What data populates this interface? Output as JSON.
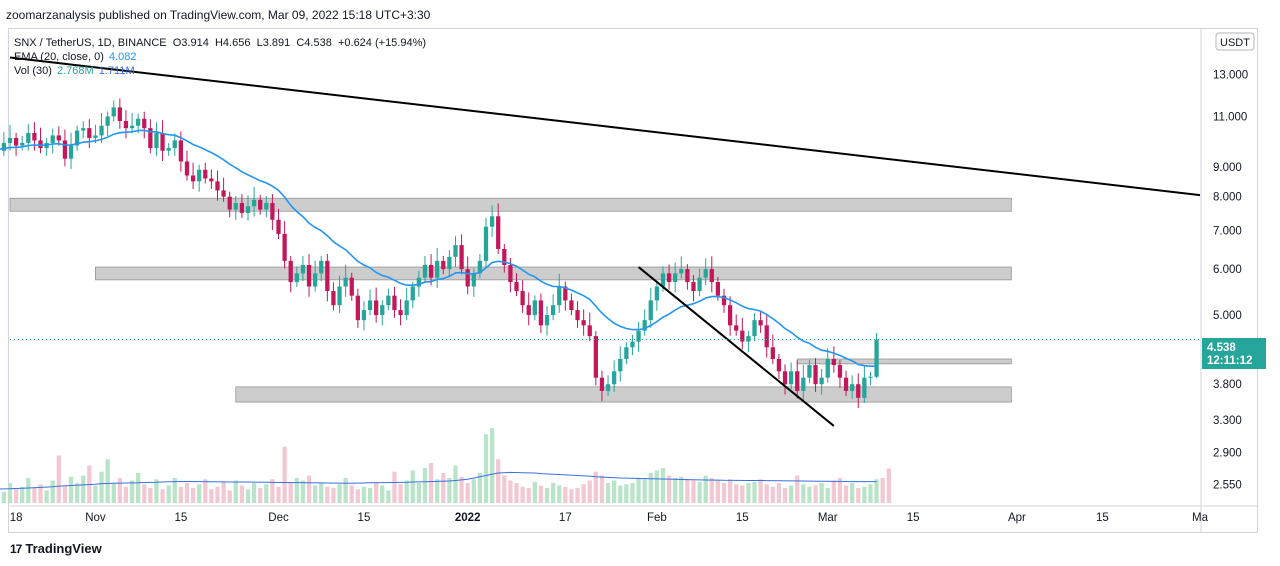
{
  "header": {
    "published": "zoomarzanalysis published on TradingView.com, Mar 09, 2022 15:18 UTC+3:30"
  },
  "legend": {
    "symbol": "SNX / TetherUS, 1D, BINANCE",
    "open": "O3.914",
    "high": "H4.656",
    "low": "L3.891",
    "close": "C4.538",
    "change": "+0.624 (+15.94%)",
    "ema_label": "EMA (20, close, 0)",
    "ema_value": "4.082",
    "vol_label": "Vol (30)",
    "vol_value": "2.768M",
    "vol_ma_value": "1.711M"
  },
  "currency_badge": "USDT",
  "price_badge": {
    "price": "4.538",
    "countdown": "12:11:12"
  },
  "brand": {
    "logo_text": "17",
    "name": "TradingView"
  },
  "colors": {
    "up": "#26a69a",
    "down": "#c2185b",
    "ema": "#2196f3",
    "vol_up": "#b9e4c9",
    "vol_down": "#f2c9d2",
    "vol_ma": "#3b6fe0",
    "zone": "#c8c8c8",
    "trendline": "#000000",
    "price_line": "#26a69a"
  },
  "chart_data": {
    "type": "candlestick",
    "y_scale": "log",
    "ylim": [
      2.4,
      15.5
    ],
    "y_ticks": [
      "13.000",
      "11.000",
      "9.000",
      "8.000",
      "7.000",
      "6.000",
      "5.000",
      "3.800",
      "3.300",
      "2.900",
      "2.550"
    ],
    "y_tick_values": [
      13.0,
      11.0,
      9.0,
      8.0,
      7.0,
      6.0,
      5.0,
      3.8,
      3.3,
      2.9,
      2.55
    ],
    "x_ticks": [
      "18",
      "Nov",
      "15",
      "Dec",
      "15",
      "2022",
      "17",
      "Feb",
      "15",
      "Mar",
      "15",
      "Apr",
      "15",
      "Ma"
    ],
    "x_tick_days": [
      -13,
      0,
      14,
      30,
      44,
      61,
      77,
      92,
      106,
      120,
      134,
      151,
      165,
      181
    ],
    "x_start_day": -14,
    "x_end_day": 181,
    "x_origin": "2021-11-01",
    "last": {
      "open": 3.914,
      "high": 4.656,
      "low": 3.891,
      "close": 4.538,
      "ema": 4.082
    },
    "closes": [
      9.5,
      9.7,
      9.6,
      9.9,
      10.1,
      9.8,
      9.9,
      10.3,
      10.0,
      9.7,
      9.9,
      10.2,
      10.0,
      9.3,
      9.8,
      10.4,
      10.5,
      10.1,
      10.2,
      10.6,
      11.0,
      11.4,
      10.8,
      10.5,
      10.6,
      10.9,
      10.5,
      9.7,
      10.3,
      9.6,
      9.7,
      10.0,
      9.2,
      8.7,
      8.5,
      8.9,
      8.6,
      8.5,
      8.2,
      8.0,
      7.6,
      7.8,
      7.5,
      7.7,
      7.9,
      7.6,
      7.8,
      7.3,
      6.9,
      6.2,
      5.7,
      5.9,
      6.1,
      5.6,
      5.9,
      6.2,
      5.5,
      5.2,
      5.6,
      5.8,
      5.4,
      4.9,
      5.1,
      5.3,
      5.0,
      5.2,
      5.4,
      5.1,
      5.0,
      5.3,
      5.6,
      5.8,
      6.1,
      5.8,
      6.2,
      6.0,
      6.3,
      6.6,
      6.0,
      5.6,
      5.9,
      6.2,
      7.1,
      7.4,
      6.5,
      6.1,
      5.7,
      5.5,
      5.2,
      5.0,
      5.3,
      4.8,
      5.0,
      5.2,
      5.6,
      5.3,
      5.1,
      4.9,
      4.8,
      4.6,
      3.9,
      3.7,
      3.8,
      4.0,
      4.2,
      4.4,
      4.5,
      4.7,
      4.9,
      5.3,
      5.6,
      5.9,
      5.7,
      5.9,
      6.0,
      5.7,
      5.5,
      5.8,
      6.0,
      5.7,
      5.4,
      5.2,
      4.8,
      4.7,
      4.5,
      4.6,
      4.9,
      4.8,
      4.4,
      4.2,
      4.0,
      3.8,
      4.0,
      3.7,
      3.9,
      4.1,
      3.8,
      3.9,
      4.2,
      4.1,
      3.9,
      3.7,
      3.8,
      3.6,
      3.9,
      3.914,
      4.538
    ],
    "ema": [
      9.6,
      9.65,
      9.65,
      9.68,
      9.72,
      9.73,
      9.75,
      9.8,
      9.82,
      9.81,
      9.82,
      9.86,
      9.87,
      9.82,
      9.82,
      9.87,
      9.93,
      9.95,
      9.98,
      10.04,
      10.13,
      10.25,
      10.31,
      10.33,
      10.35,
      10.4,
      10.41,
      10.35,
      10.35,
      10.28,
      10.23,
      10.21,
      10.11,
      9.98,
      9.84,
      9.75,
      9.64,
      9.53,
      9.4,
      9.26,
      9.1,
      8.97,
      8.83,
      8.72,
      8.62,
      8.52,
      8.45,
      8.34,
      8.2,
      7.99,
      7.73,
      7.54,
      7.39,
      7.2,
      7.08,
      6.99,
      6.85,
      6.69,
      6.58,
      6.48,
      6.33,
      6.19,
      6.1,
      6.03,
      5.92,
      5.85,
      5.81,
      5.74,
      5.67,
      5.63,
      5.63,
      5.65,
      5.7,
      5.71,
      5.76,
      5.78,
      5.83,
      5.91,
      5.92,
      5.89,
      5.89,
      5.92,
      6.03,
      6.16,
      6.19,
      6.17,
      6.13,
      6.07,
      5.98,
      5.88,
      5.82,
      5.72,
      5.65,
      5.6,
      5.6,
      5.57,
      5.52,
      5.46,
      5.4,
      5.32,
      5.18,
      5.04,
      4.93,
      4.84,
      4.78,
      4.74,
      4.72,
      4.72,
      4.74,
      4.8,
      4.87,
      4.96,
      5.02,
      5.1,
      5.17,
      5.2,
      5.23,
      5.28,
      5.35,
      5.38,
      5.38,
      5.36,
      5.31,
      5.25,
      5.18,
      5.13,
      5.11,
      5.08,
      5.01,
      4.93,
      4.84,
      4.74,
      4.67,
      4.58,
      4.51,
      4.47,
      4.4,
      4.35,
      4.33,
      4.3,
      4.26,
      4.21,
      4.17,
      4.11,
      4.09,
      4.082,
      4.082
    ],
    "volume": [
      1.2,
      1.0,
      1.4,
      0.9,
      1.6,
      1.1,
      1.3,
      2.0,
      1.2,
      1.5,
      1.0,
      1.8,
      3.8,
      1.4,
      2.1,
      1.6,
      2.2,
      3.0,
      1.4,
      2.5,
      3.5,
      1.6,
      2.0,
      1.3,
      1.8,
      2.4,
      1.5,
      1.2,
      1.9,
      1.1,
      1.4,
      2.0,
      1.3,
      1.6,
      1.2,
      1.5,
      1.9,
      1.1,
      1.3,
      1.7,
      1.0,
      1.8,
      1.4,
      1.1,
      1.6,
      1.2,
      1.5,
      1.9,
      1.3,
      4.5,
      1.6,
      2.0,
      1.8,
      2.2,
      1.4,
      1.6,
      1.3,
      1.2,
      1.5,
      2.0,
      1.4,
      1.1,
      1.3,
      1.2,
      1.6,
      1.4,
      1.0,
      2.5,
      1.5,
      1.8,
      2.6,
      1.6,
      2.8,
      3.2,
      1.9,
      2.4,
      2.0,
      3.0,
      2.1,
      1.6,
      1.9,
      2.4,
      5.5,
      6.0,
      3.5,
      2.2,
      1.8,
      1.6,
      1.3,
      1.2,
      1.7,
      1.4,
      1.2,
      1.6,
      1.4,
      1.3,
      1.1,
      1.2,
      1.5,
      1.8,
      2.5,
      2.2,
      1.6,
      1.8,
      1.4,
      1.5,
      1.6,
      2.0,
      1.9,
      2.4,
      2.6,
      2.8,
      2.2,
      2.0,
      2.1,
      1.9,
      1.8,
      1.7,
      2.2,
      2.0,
      1.8,
      1.6,
      1.9,
      1.5,
      1.4,
      1.6,
      1.7,
      1.9,
      1.5,
      1.3,
      1.6,
      1.2,
      1.4,
      2.2,
      1.5,
      1.3,
      1.4,
      1.6,
      1.2,
      1.8,
      2.0,
      1.4,
      1.6,
      1.2,
      1.3,
      1.5,
      1.9,
      2.0,
      2.768
    ],
    "vol_ma_series": [
      1.1,
      1.12,
      1.14,
      1.16,
      1.2,
      1.25,
      1.3,
      1.35,
      1.4,
      1.45,
      1.5,
      1.55,
      1.58,
      1.6,
      1.62,
      1.64,
      1.66,
      1.7,
      1.72,
      1.72,
      1.71,
      1.7,
      1.69,
      1.68,
      1.68,
      1.67,
      1.66,
      1.65,
      1.64,
      1.63,
      1.62,
      1.61,
      1.6,
      1.59,
      1.58,
      1.6,
      1.62,
      1.63,
      1.64,
      1.66,
      1.68,
      1.7,
      1.73,
      1.76,
      1.8,
      1.9,
      2.1,
      2.3,
      2.4,
      2.45,
      2.42,
      2.4,
      2.35,
      2.3,
      2.25,
      2.2,
      2.15,
      2.1,
      2.05,
      2.0,
      1.98,
      1.96,
      1.94,
      1.92,
      1.9,
      1.88,
      1.86,
      1.84,
      1.83,
      1.82,
      1.81,
      1.8,
      1.8,
      1.79,
      1.78,
      1.77,
      1.76,
      1.75,
      1.74,
      1.73,
      1.72,
      1.71,
      1.71,
      1.711
    ],
    "zones": [
      {
        "low": 7.55,
        "high": 7.95,
        "from_day": -14,
        "to_day": 150
      },
      {
        "low": 5.75,
        "high": 6.05,
        "from_day": 0,
        "to_day": 150
      },
      {
        "low": 3.54,
        "high": 3.76,
        "from_day": 23,
        "to_day": 150
      },
      {
        "low": 4.12,
        "high": 4.2,
        "from_day": 115,
        "to_day": 150
      }
    ],
    "trendlines": [
      {
        "from": [
          -14,
          13.9
        ],
        "to": [
          181,
          8.05
        ]
      },
      {
        "from": [
          89,
          6.05
        ],
        "to": [
          121,
          3.22
        ]
      }
    ]
  }
}
